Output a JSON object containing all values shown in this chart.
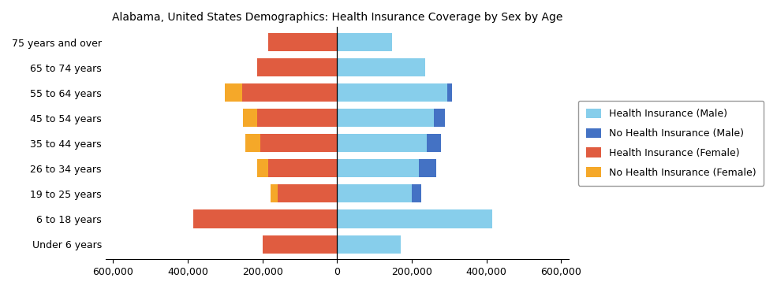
{
  "title": "Alabama, United States Demographics: Health Insurance Coverage by Sex by Age",
  "age_groups": [
    "Under 6 years",
    "6 to 18 years",
    "19 to 25 years",
    "26 to 34 years",
    "35 to 44 years",
    "45 to 54 years",
    "55 to 64 years",
    "65 to 74 years",
    "75 years and over"
  ],
  "health_ins_male": [
    170000,
    415000,
    200000,
    220000,
    240000,
    260000,
    295000,
    235000,
    148000
  ],
  "no_health_ins_male": [
    0,
    0,
    25000,
    45000,
    38000,
    28000,
    12000,
    0,
    0
  ],
  "health_ins_female": [
    200000,
    385000,
    160000,
    185000,
    205000,
    215000,
    255000,
    215000,
    185000
  ],
  "no_health_ins_female": [
    0,
    0,
    18000,
    30000,
    40000,
    38000,
    45000,
    0,
    0
  ],
  "colors": {
    "health_ins_male": "#87CEEB",
    "no_health_ins_male": "#4472C4",
    "health_ins_female": "#E05C40",
    "no_health_ins_female": "#F5A829"
  },
  "xlim": [
    -620000,
    620000
  ],
  "xticks": [
    -600000,
    -400000,
    -200000,
    0,
    200000,
    400000,
    600000
  ],
  "xtick_labels": [
    "600,000",
    "400,000",
    "200,000",
    "0",
    "200,000",
    "400,000",
    "600,000"
  ],
  "legend_labels": [
    "Health Insurance (Male)",
    "No Health Insurance (Male)",
    "Health Insurance (Female)",
    "No Health Insurance (Female)"
  ],
  "bar_height": 0.72,
  "figsize": [
    9.85,
    3.67
  ],
  "dpi": 100
}
